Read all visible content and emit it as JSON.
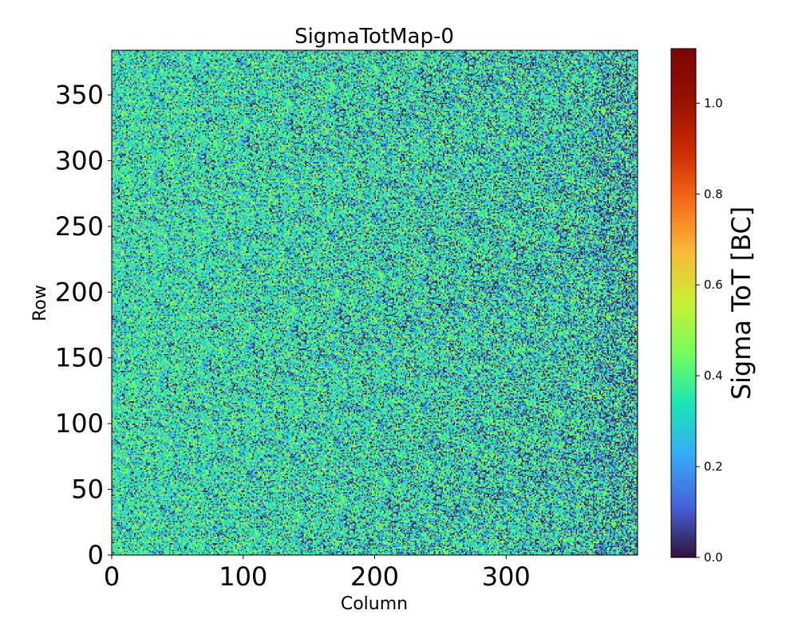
{
  "chart_data": {
    "type": "heatmap",
    "title": "SigmaTotMap-0",
    "xlabel": "Column",
    "ylabel": "Row",
    "xlim": [
      0,
      400
    ],
    "ylim": [
      0,
      384
    ],
    "n_columns": 400,
    "n_rows": 384,
    "x_ticks": [
      0,
      100,
      200,
      300
    ],
    "y_ticks": [
      0,
      50,
      100,
      150,
      200,
      250,
      300,
      350
    ],
    "x_tick_labels": [
      "0",
      "100",
      "200",
      "300"
    ],
    "y_tick_labels": [
      "0",
      "50",
      "100",
      "150",
      "200",
      "250",
      "300",
      "350"
    ],
    "colormap": "turbo",
    "colorbar": {
      "label": "Sigma ToT [BC]",
      "range": [
        0.0,
        1.12
      ],
      "ticks": [
        0.0,
        0.2,
        0.4,
        0.6,
        0.8,
        1.0
      ],
      "tick_labels": [
        "0.0",
        "0.2",
        "0.4",
        "0.6",
        "0.8",
        "1.0"
      ]
    },
    "value_distribution": {
      "typical_range": [
        0.0,
        0.6
      ],
      "dominant_value": 0.35,
      "note": "noisy per-pixel map, values mostly 0.2-0.5 with many 0.0 pixels; more dark (low) pixels toward higher columns"
    }
  }
}
